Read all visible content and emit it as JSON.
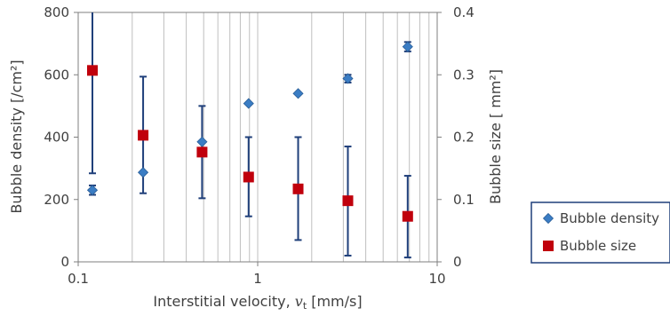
{
  "chart_data": {
    "type": "scatter",
    "x_scale": "log",
    "xlim": [
      0.1,
      10
    ],
    "ylim_left": [
      0,
      800
    ],
    "ylim_right": [
      0,
      0.4
    ],
    "xlabel_main": "Interstitial velocity, ",
    "xlabel_var": "v",
    "xlabel_sub": "t",
    "xlabel_unit": " [mm/s]",
    "ylabel_left": "Bubble density [/cm²]",
    "ylabel_right": "Bubble size [ mm²]",
    "x_ticks": [
      {
        "value": 0.1,
        "label": "0.1"
      },
      {
        "value": 1,
        "label": "1"
      },
      {
        "value": 10,
        "label": "10"
      }
    ],
    "y_ticks_left": [
      {
        "value": 0,
        "label": "0"
      },
      {
        "value": 200,
        "label": "200"
      },
      {
        "value": 400,
        "label": "400"
      },
      {
        "value": 600,
        "label": "600"
      },
      {
        "value": 800,
        "label": "800"
      }
    ],
    "y_ticks_right": [
      {
        "value": 0,
        "label": "0"
      },
      {
        "value": 0.1,
        "label": "0.1"
      },
      {
        "value": 0.2,
        "label": "0.2"
      },
      {
        "value": 0.3,
        "label": "0.3"
      },
      {
        "value": 0.4,
        "label": "0.4"
      }
    ],
    "legend_position": "right",
    "series": [
      {
        "name": "Bubble density",
        "axis": "left",
        "marker": "diamond",
        "color": "#3b7dc4",
        "points": [
          {
            "x": 0.12,
            "y": 230,
            "err_low": 215,
            "err_high": 245
          },
          {
            "x": 0.23,
            "y": 287
          },
          {
            "x": 0.49,
            "y": 385
          },
          {
            "x": 0.89,
            "y": 508
          },
          {
            "x": 1.68,
            "y": 540
          },
          {
            "x": 3.18,
            "y": 588,
            "err_low": 575,
            "err_high": 600
          },
          {
            "x": 6.85,
            "y": 690,
            "err_low": 675,
            "err_high": 705
          }
        ]
      },
      {
        "name": "Bubble size",
        "axis": "right",
        "marker": "square",
        "color": "#c0000c",
        "points": [
          {
            "x": 0.12,
            "y": 0.307,
            "err_low": 0.142,
            "err_high": 0.4
          },
          {
            "x": 0.23,
            "y": 0.203,
            "err_low": 0.11,
            "err_high": 0.297
          },
          {
            "x": 0.49,
            "y": 0.176,
            "err_low": 0.102,
            "err_high": 0.25
          },
          {
            "x": 0.89,
            "y": 0.136,
            "err_low": 0.073,
            "err_high": 0.2
          },
          {
            "x": 1.68,
            "y": 0.117,
            "err_low": 0.035,
            "err_high": 0.2
          },
          {
            "x": 3.18,
            "y": 0.098,
            "err_low": 0.01,
            "err_high": 0.185
          },
          {
            "x": 6.85,
            "y": 0.073,
            "err_low": 0.007,
            "err_high": 0.138
          }
        ]
      }
    ],
    "error_bar_color": "#1f3f7a",
    "grid_color": "#bfbfbf"
  }
}
